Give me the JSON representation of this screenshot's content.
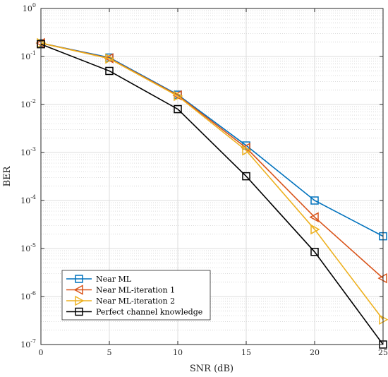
{
  "chart_data": {
    "type": "line",
    "xlabel": "SNR (dB)",
    "ylabel": "BER",
    "x_ticks": [
      "0",
      "5",
      "10",
      "15",
      "20",
      "25"
    ],
    "y_ticks": [
      {
        "base": "10",
        "exp": "0",
        "value": 1
      },
      {
        "base": "10",
        "exp": "-1",
        "value": 0.1
      },
      {
        "base": "10",
        "exp": "-2",
        "value": 0.01
      },
      {
        "base": "10",
        "exp": "-3",
        "value": 0.001
      },
      {
        "base": "10",
        "exp": "-4",
        "value": 0.0001
      },
      {
        "base": "10",
        "exp": "-5",
        "value": 1e-05
      },
      {
        "base": "10",
        "exp": "-6",
        "value": 1e-06
      },
      {
        "base": "10",
        "exp": "-7",
        "value": 1e-07
      }
    ],
    "xlim": [
      0,
      25
    ],
    "ylim": [
      1e-07,
      1
    ],
    "y_scale": "log",
    "grid": true,
    "legend_position": "bottom-left",
    "x": [
      0,
      5,
      10,
      15,
      20,
      25
    ],
    "series": [
      {
        "name": "Near ML",
        "color": "#0072BD",
        "marker": "square",
        "values": [
          0.19,
          0.095,
          0.016,
          0.0014,
          0.0001,
          1.8e-05
        ]
      },
      {
        "name": "Near ML-iteration 1",
        "color": "#D95319",
        "marker": "triangle-left",
        "values": [
          0.19,
          0.092,
          0.0155,
          0.00125,
          4.5e-05,
          2.4e-06
        ]
      },
      {
        "name": "Near ML-iteration 2",
        "color": "#EDB120",
        "marker": "triangle-right",
        "values": [
          0.19,
          0.09,
          0.015,
          0.0011,
          2.5e-05,
          3.3e-07
        ]
      },
      {
        "name": "Perfect channel knowledge",
        "color": "#000000",
        "marker": "square",
        "values": [
          0.18,
          0.05,
          0.008,
          0.00032,
          8.5e-06,
          1e-07
        ]
      }
    ]
  }
}
